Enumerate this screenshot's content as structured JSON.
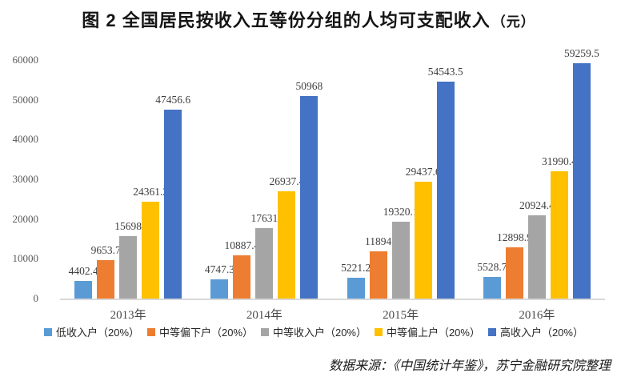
{
  "title": {
    "text": "图 2  全国居民按收入五等份分组的人均可支配收入",
    "unit": "（元）"
  },
  "source": {
    "text": "数据来源：《中国统计年鉴》，苏宁金融研究院整理"
  },
  "chart_data": {
    "type": "bar",
    "title": "图 2 全国居民按收入五等份分组的人均可支配收入（元）",
    "xlabel": "",
    "ylabel": "",
    "categories": [
      "2013年",
      "2014年",
      "2015年",
      "2016年"
    ],
    "series": [
      {
        "name": "低收入户（20%）",
        "color": "#5B9BD5",
        "values": [
          4402.4,
          4747.3,
          5221.2,
          5528.7
        ]
      },
      {
        "name": "中等偏下户（20%）",
        "color": "#ED7D31",
        "values": [
          9653.7,
          10887.4,
          11894,
          12898.9
        ]
      },
      {
        "name": "中等收入户（20%）",
        "color": "#A5A5A5",
        "values": [
          15698,
          17631,
          19320.1,
          20924.4
        ]
      },
      {
        "name": "中等偏上户（20%）",
        "color": "#FFC000",
        "values": [
          24361.2,
          26937.4,
          29437.6,
          31990.4
        ]
      },
      {
        "name": "高收入户（20%）",
        "color": "#4472C4",
        "values": [
          47456.6,
          50968,
          54543.5,
          59259.5
        ]
      }
    ],
    "axis": {
      "ymin": 0,
      "ymax": 60000,
      "yticks": [
        0,
        10000,
        20000,
        30000,
        40000,
        50000,
        60000
      ]
    },
    "grid": false,
    "bar_value_labels": true,
    "legend_position": "bottom"
  }
}
